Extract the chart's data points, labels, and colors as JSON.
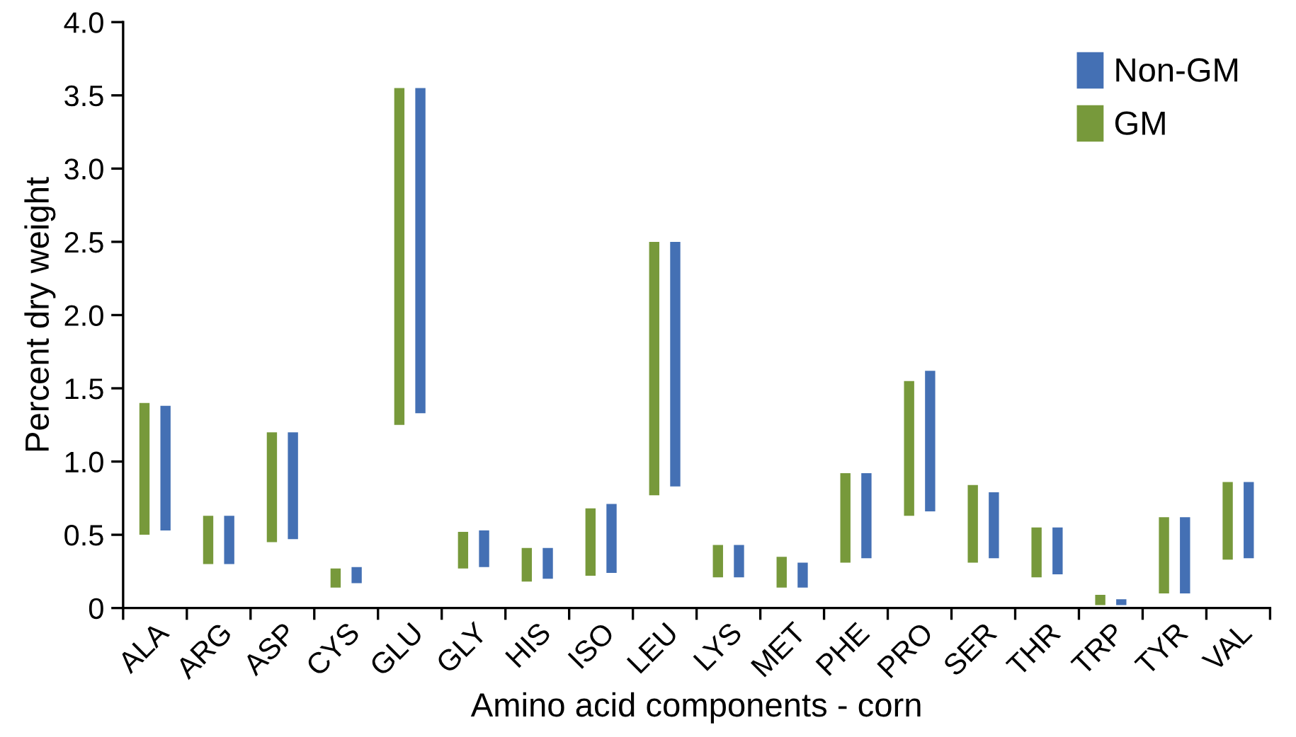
{
  "chart_data": {
    "type": "bar",
    "xlabel": "Amino acid components - corn",
    "ylabel": "Percent dry weight",
    "categories": [
      "ALA",
      "ARG",
      "ASP",
      "CYS",
      "GLU",
      "GLY",
      "HIS",
      "ISO",
      "LEU",
      "LYS",
      "MET",
      "PHE",
      "PRO",
      "SER",
      "THR",
      "TRP",
      "TYR",
      "VAL"
    ],
    "series": [
      {
        "name": "GM",
        "color": "#77993b",
        "base": [
          0.5,
          0.3,
          0.45,
          0.14,
          1.25,
          0.27,
          0.18,
          0.22,
          0.77,
          0.21,
          0.14,
          0.31,
          0.63,
          0.31,
          0.21,
          0.02,
          0.1,
          0.33
        ],
        "values": [
          0.9,
          0.33,
          0.75,
          0.13,
          2.3,
          0.25,
          0.23,
          0.46,
          1.73,
          0.22,
          0.21,
          0.61,
          0.92,
          0.53,
          0.34,
          0.07,
          0.52,
          0.53
        ]
      },
      {
        "name": "Non-GM",
        "color": "#4470b4",
        "base": [
          0.53,
          0.3,
          0.47,
          0.17,
          1.33,
          0.28,
          0.2,
          0.24,
          0.83,
          0.21,
          0.14,
          0.34,
          0.66,
          0.34,
          0.23,
          0.02,
          0.1,
          0.34
        ],
        "values": [
          0.85,
          0.33,
          0.73,
          0.11,
          2.22,
          0.25,
          0.21,
          0.47,
          1.67,
          0.22,
          0.17,
          0.58,
          0.96,
          0.45,
          0.32,
          0.04,
          0.52,
          0.52
        ]
      }
    ],
    "ylim": [
      0,
      4.0
    ],
    "yticks": [
      0,
      {
        "value": 0.5,
        "label": "0.5"
      },
      {
        "value": 1.0,
        "label": "1.0"
      },
      {
        "value": 1.5,
        "label": "1.5"
      },
      {
        "value": 2.0,
        "label": "2.0"
      },
      {
        "value": 2.5,
        "label": "2.5"
      },
      {
        "value": 3.0,
        "label": "3.0"
      },
      {
        "value": 3.5,
        "label": "3.5"
      },
      {
        "value": 4.0,
        "label": "4.0"
      }
    ],
    "grid": false,
    "legend": "top right"
  }
}
